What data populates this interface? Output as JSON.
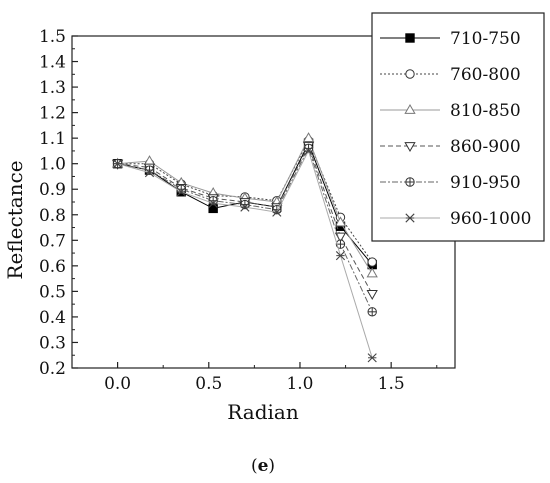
{
  "chart_data": {
    "type": "line",
    "xlabel": "Radian",
    "ylabel": "Reflectance",
    "xlim": [
      -0.25,
      1.85
    ],
    "ylim": [
      0.2,
      1.5
    ],
    "xticks": [
      0.0,
      0.5,
      1.0,
      1.5
    ],
    "xtick_labels": [
      "0.0",
      "0.5",
      "1.0",
      "1.5"
    ],
    "yticks": [
      0.2,
      0.3,
      0.4,
      0.5,
      0.6,
      0.7,
      0.8,
      0.9,
      1.0,
      1.1,
      1.2,
      1.3,
      1.4,
      1.5
    ],
    "ytick_labels": [
      "0.2",
      "0.3",
      "0.4",
      "0.5",
      "0.6",
      "0.7",
      "0.8",
      "0.9",
      "1.0",
      "1.1",
      "1.2",
      "1.3",
      "1.4",
      "1.5"
    ],
    "grid": false,
    "legend_position": "top-right",
    "x": [
      0.0,
      0.175,
      0.349,
      0.524,
      0.698,
      0.873,
      1.047,
      1.222,
      1.396
    ],
    "series": [
      {
        "name": "710-750",
        "marker": "square-filled",
        "dash": "solid",
        "color": "#000000",
        "values": [
          1.0,
          0.975,
          0.89,
          0.825,
          0.85,
          0.83,
          1.08,
          0.755,
          0.605
        ]
      },
      {
        "name": "760-800",
        "marker": "circle-open",
        "dash": "dotted",
        "color": "#444444",
        "values": [
          1.0,
          1.0,
          0.92,
          0.875,
          0.87,
          0.855,
          1.09,
          0.79,
          0.615
        ]
      },
      {
        "name": "810-850",
        "marker": "triangle-up-open",
        "dash": "solid",
        "color": "#999999",
        "values": [
          1.0,
          1.01,
          0.925,
          0.885,
          0.865,
          0.85,
          1.1,
          0.77,
          0.57
        ]
      },
      {
        "name": "860-900",
        "marker": "triangle-down-open",
        "dash": "dashed",
        "color": "#555555",
        "values": [
          1.0,
          0.985,
          0.905,
          0.865,
          0.85,
          0.83,
          1.07,
          0.715,
          0.49
        ]
      },
      {
        "name": "910-950",
        "marker": "circle-plus",
        "dash": "dashdot",
        "color": "#666666",
        "values": [
          1.0,
          0.975,
          0.9,
          0.855,
          0.84,
          0.82,
          1.06,
          0.685,
          0.42
        ]
      },
      {
        "name": "960-1000",
        "marker": "x-cross",
        "dash": "solid",
        "color": "#aaaaaa",
        "values": [
          1.0,
          0.965,
          0.89,
          0.845,
          0.83,
          0.81,
          1.05,
          0.64,
          0.24
        ]
      }
    ]
  },
  "caption": {
    "open": "(",
    "letter": "e",
    "close": ")"
  }
}
